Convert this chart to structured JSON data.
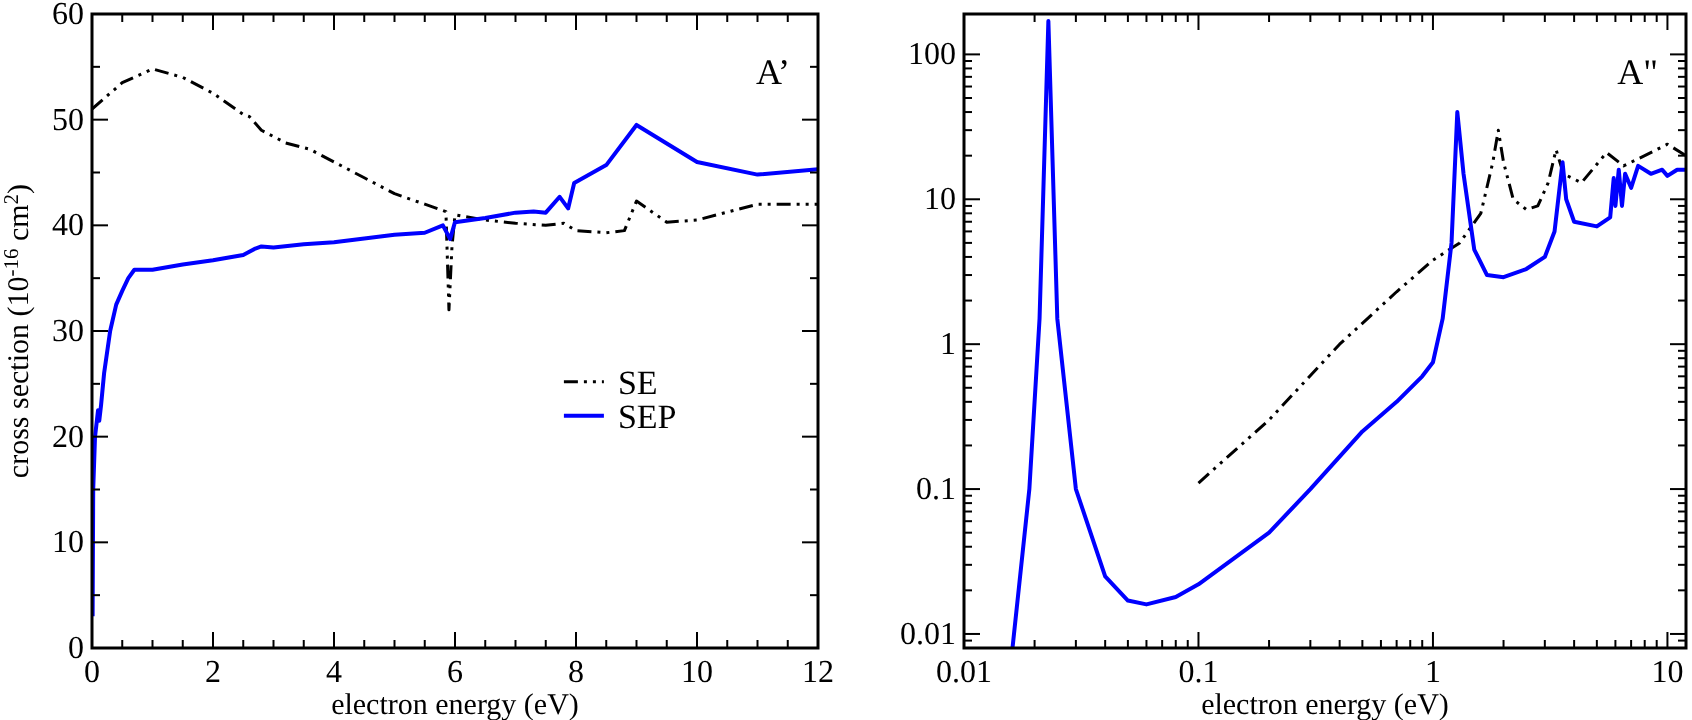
{
  "chart_data": [
    {
      "type": "line",
      "xlabel": "electron energy (eV)",
      "ylabel": "cross section (10$^{-16}$ cm$^{2}$)",
      "annotations": [
        "A’"
      ],
      "legend": "right",
      "xlim": [
        0,
        12
      ],
      "ylim": [
        0,
        60
      ],
      "xticks": [
        0,
        {
          "value": 0.5,
          "label": null
        },
        {
          "value": 1,
          "label": null
        },
        {
          "value": 1.5,
          "label": null
        },
        2,
        {
          "value": 2.5,
          "label": null
        },
        {
          "value": 3,
          "label": null
        },
        {
          "value": 3.5,
          "label": null
        },
        4,
        {
          "value": 4.5,
          "label": null
        },
        {
          "value": 5,
          "label": null
        },
        {
          "value": 5.5,
          "label": null
        },
        6,
        {
          "value": 6.5,
          "label": null
        },
        {
          "value": 7,
          "label": null
        },
        {
          "value": 7.5,
          "label": null
        },
        8,
        {
          "value": 8.5,
          "label": null
        },
        {
          "value": 9,
          "label": null
        },
        {
          "value": 9.5,
          "label": null
        },
        10,
        {
          "value": 10.5,
          "label": null
        },
        {
          "value": 11,
          "label": null
        },
        {
          "value": 11.5,
          "label": null
        },
        12
      ],
      "yticks": [
        0,
        {
          "value": 5,
          "label": null
        },
        10,
        {
          "value": 15,
          "label": null
        },
        20,
        {
          "value": 25,
          "label": null
        },
        30,
        {
          "value": 35,
          "label": null
        },
        40,
        {
          "value": 45,
          "label": null
        },
        50,
        {
          "value": 55,
          "label": null
        },
        60
      ],
      "series": [
        {
          "name": "SE",
          "color": "#000000",
          "line_style": "dashed",
          "x": [
            0,
            0.5,
            1,
            1.5,
            2,
            2.5,
            2.6,
            2.8,
            3.2,
            3.6,
            4,
            4.5,
            5,
            5.5,
            5.85,
            5.9,
            5.95,
            6,
            6.5,
            7,
            7.5,
            7.8,
            8,
            8.5,
            8.8,
            9,
            9.5,
            10,
            11,
            12
          ],
          "values": [
            51,
            53.5,
            54.8,
            54,
            52.5,
            50.5,
            50.3,
            49,
            47.8,
            47.2,
            46,
            44.5,
            43,
            42,
            41.3,
            32,
            38,
            41,
            40.5,
            40.2,
            40,
            40.2,
            39.5,
            39.3,
            39.5,
            42.3,
            40.3,
            40.5,
            42,
            42
          ]
        },
        {
          "name": "SEP",
          "color": "#0000ff",
          "line_style": "solid",
          "x": [
            0.01,
            0.02,
            0.05,
            0.1,
            0.12,
            0.15,
            0.2,
            0.3,
            0.4,
            0.5,
            0.6,
            0.7,
            1,
            1.5,
            2,
            2.5,
            2.7,
            2.8,
            3,
            3.5,
            4,
            5,
            5.5,
            5.8,
            5.92,
            6,
            6.5,
            7,
            7.3,
            7.5,
            7.73,
            7.87,
            7.97,
            8.5,
            9,
            10,
            11,
            12
          ],
          "values": [
            3,
            15,
            20,
            22.5,
            21.5,
            23,
            26,
            30,
            32.5,
            33.8,
            35,
            35.8,
            35.8,
            36.3,
            36.7,
            37.2,
            37.8,
            38,
            37.9,
            38.2,
            38.4,
            39.1,
            39.3,
            40,
            38.7,
            40.3,
            40.7,
            41.2,
            41.3,
            41.2,
            42.7,
            41.6,
            44,
            45.7,
            49.5,
            46,
            44.8,
            45.3
          ]
        }
      ]
    },
    {
      "type": "line",
      "xlabel": "electron energy (eV)",
      "annotations": [
        "A\""
      ],
      "legend": false,
      "log": "xy",
      "xlim": [
        0.01,
        12
      ],
      "ylim": [
        0.008,
        190
      ],
      "xticks": [
        0.01,
        {
          "value": 0.02,
          "label": null
        },
        {
          "value": 0.03,
          "label": null
        },
        {
          "value": 0.04,
          "label": null
        },
        {
          "value": 0.05,
          "label": null
        },
        {
          "value": 0.06,
          "label": null
        },
        {
          "value": 0.07,
          "label": null
        },
        {
          "value": 0.08,
          "label": null
        },
        {
          "value": 0.09,
          "label": null
        },
        0.1,
        {
          "value": 0.2,
          "label": null
        },
        {
          "value": 0.3,
          "label": null
        },
        {
          "value": 0.4,
          "label": null
        },
        {
          "value": 0.5,
          "label": null
        },
        {
          "value": 0.6,
          "label": null
        },
        {
          "value": 0.7,
          "label": null
        },
        {
          "value": 0.8,
          "label": null
        },
        {
          "value": 0.9,
          "label": null
        },
        1,
        {
          "value": 2,
          "label": null
        },
        {
          "value": 3,
          "label": null
        },
        {
          "value": 4,
          "label": null
        },
        {
          "value": 5,
          "label": null
        },
        {
          "value": 6,
          "label": null
        },
        {
          "value": 7,
          "label": null
        },
        {
          "value": 8,
          "label": null
        },
        {
          "value": 9,
          "label": null
        },
        10
      ],
      "yticks": [
        {
          "value": 0.009,
          "label": null
        },
        0.01,
        {
          "value": 0.02,
          "label": null
        },
        {
          "value": 0.03,
          "label": null
        },
        {
          "value": 0.04,
          "label": null
        },
        {
          "value": 0.05,
          "label": null
        },
        {
          "value": 0.06,
          "label": null
        },
        {
          "value": 0.07,
          "label": null
        },
        {
          "value": 0.08,
          "label": null
        },
        {
          "value": 0.09,
          "label": null
        },
        0.1,
        {
          "value": 0.2,
          "label": null
        },
        {
          "value": 0.3,
          "label": null
        },
        {
          "value": 0.4,
          "label": null
        },
        {
          "value": 0.5,
          "label": null
        },
        {
          "value": 0.6,
          "label": null
        },
        {
          "value": 0.7,
          "label": null
        },
        {
          "value": 0.8,
          "label": null
        },
        {
          "value": 0.9,
          "label": null
        },
        1,
        {
          "value": 2,
          "label": null
        },
        {
          "value": 3,
          "label": null
        },
        {
          "value": 4,
          "label": null
        },
        {
          "value": 5,
          "label": null
        },
        {
          "value": 6,
          "label": null
        },
        {
          "value": 7,
          "label": null
        },
        {
          "value": 8,
          "label": null
        },
        {
          "value": 9,
          "label": null
        },
        10,
        {
          "value": 20,
          "label": null
        },
        {
          "value": 30,
          "label": null
        },
        {
          "value": 40,
          "label": null
        },
        {
          "value": 50,
          "label": null
        },
        {
          "value": 60,
          "label": null
        },
        {
          "value": 70,
          "label": null
        },
        {
          "value": 80,
          "label": null
        },
        {
          "value": 90,
          "label": null
        },
        100
      ],
      "series": [
        {
          "color": "#000000",
          "line_style": "dashed",
          "x": [
            0.1,
            0.2,
            0.4,
            0.7,
            1,
            1.3,
            1.6,
            1.8,
            1.9,
            2,
            2.2,
            2.5,
            2.8,
            3.1,
            3.35,
            3.6,
            4.3,
            5.5,
            6.5,
            8,
            10,
            12
          ],
          "values": [
            0.11,
            0.3,
            1,
            2.3,
            3.8,
            5,
            8,
            18,
            30,
            18,
            10,
            8.5,
            9,
            13,
            22,
            15,
            13,
            21,
            17,
            20,
            24,
            20
          ]
        },
        {
          "color": "#0000ff",
          "line_style": "solid",
          "x": [
            0.0161,
            0.019,
            0.021,
            0.0229,
            0.025,
            0.03,
            0.04,
            0.05,
            0.06,
            0.08,
            0.1,
            0.2,
            0.3,
            0.5,
            0.7,
            0.9,
            1,
            1.1,
            1.2,
            1.27,
            1.35,
            1.5,
            1.7,
            2,
            2.5,
            3,
            3.3,
            3.57,
            3.7,
            4,
            5,
            5.7,
            5.9,
            6,
            6.2,
            6.4,
            6.6,
            7,
            7.5,
            8.5,
            9.5,
            10,
            11,
            12
          ],
          "values": [
            0.008,
            0.1,
            1.5,
            170,
            1.5,
            0.1,
            0.025,
            0.017,
            0.016,
            0.018,
            0.022,
            0.05,
            0.1,
            0.25,
            0.4,
            0.6,
            0.75,
            1.5,
            5,
            40,
            15,
            4.5,
            3,
            2.9,
            3.3,
            4,
            6,
            18,
            10,
            7,
            6.5,
            7.5,
            14,
            9,
            16,
            9,
            15,
            12,
            17,
            15,
            16,
            14.5,
            16,
            16
          ]
        }
      ]
    }
  ]
}
